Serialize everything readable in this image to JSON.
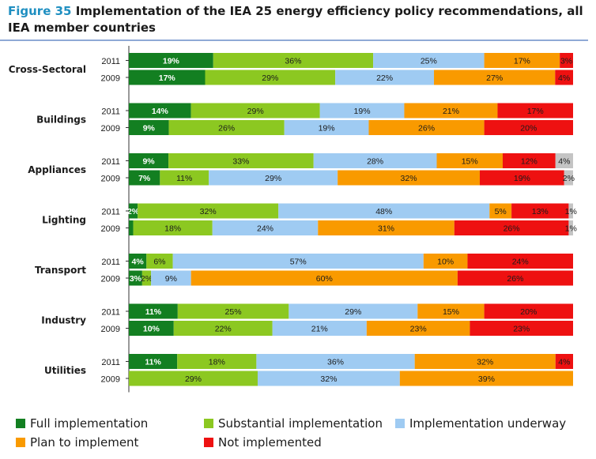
{
  "title": {
    "figure_label": "Figure 35",
    "text": "Implementation of the IEA 25 energy efficiency policy recommendations, all IEA member countries"
  },
  "colors": {
    "full": "#137f21",
    "substantial": "#8cc821",
    "underway": "#9fcbf2",
    "plan": "#f99a00",
    "not": "#ee1111",
    "extra": "#c4c4c4",
    "title_accent": "#1f8fc1",
    "rule": "#8fa9d6"
  },
  "legend": [
    {
      "key": "full",
      "label": "Full implementation"
    },
    {
      "key": "substantial",
      "label": "Substantial implementation"
    },
    {
      "key": "underway",
      "label": "Implementation underway"
    },
    {
      "key": "plan",
      "label": "Plan to implement"
    },
    {
      "key": "not",
      "label": "Not implemented"
    }
  ],
  "chart_data": {
    "type": "bar",
    "orientation": "horizontal",
    "stacked": true,
    "xlim": [
      0,
      100
    ],
    "groups": [
      {
        "name": "Cross-Sectoral",
        "bars": [
          {
            "year": "2011",
            "values": [
              19,
              36,
              25,
              17,
              3
            ],
            "labels": [
              "19%",
              "36%",
              "25%",
              "17%",
              "3%"
            ]
          },
          {
            "year": "2009",
            "values": [
              17,
              29,
              22,
              27,
              4
            ],
            "labels": [
              "17%",
              "29%",
              "22%",
              "27%",
              "4%"
            ]
          }
        ]
      },
      {
        "name": "Buildings",
        "bars": [
          {
            "year": "2011",
            "values": [
              14,
              29,
              19,
              21,
              17
            ],
            "labels": [
              "14%",
              "29%",
              "19%",
              "21%",
              "17%"
            ]
          },
          {
            "year": "2009",
            "values": [
              9,
              26,
              19,
              26,
              20
            ],
            "labels": [
              "9%",
              "26%",
              "19%",
              "26%",
              "20%"
            ]
          }
        ]
      },
      {
        "name": "Appliances",
        "bars": [
          {
            "year": "2011",
            "values": [
              9,
              33,
              28,
              15,
              12,
              4
            ],
            "labels": [
              "9%",
              "33%",
              "28%",
              "15%",
              "12%",
              "4%"
            ]
          },
          {
            "year": "2009",
            "values": [
              7,
              11,
              29,
              32,
              19,
              2
            ],
            "labels": [
              "7%",
              "11%",
              "29%",
              "32%",
              "19%",
              "2%"
            ]
          }
        ]
      },
      {
        "name": "Lighting",
        "bars": [
          {
            "year": "2011",
            "values": [
              2,
              32,
              48,
              5,
              13,
              1
            ],
            "labels": [
              "2%",
              "32%",
              "48%",
              "5%",
              "13%",
              "1%"
            ]
          },
          {
            "year": "2009",
            "values": [
              1,
              18,
              24,
              31,
              26,
              1
            ],
            "labels": [
              "",
              "18%",
              "24%",
              "31%",
              "26%",
              "1%"
            ]
          }
        ]
      },
      {
        "name": "Transport",
        "bars": [
          {
            "year": "2011",
            "values": [
              4,
              6,
              57,
              10,
              24
            ],
            "labels": [
              "4%",
              "6%",
              "57%",
              "10%",
              "24%"
            ]
          },
          {
            "year": "2009",
            "values": [
              3,
              2,
              9,
              60,
              26
            ],
            "labels": [
              "3%",
              "2%",
              "9%",
              "60%",
              "26%"
            ]
          }
        ]
      },
      {
        "name": "Industry",
        "bars": [
          {
            "year": "2011",
            "values": [
              11,
              25,
              29,
              15,
              20
            ],
            "labels": [
              "11%",
              "25%",
              "29%",
              "15%",
              "20%"
            ]
          },
          {
            "year": "2009",
            "values": [
              10,
              22,
              21,
              23,
              23
            ],
            "labels": [
              "10%",
              "22%",
              "21%",
              "23%",
              "23%"
            ]
          }
        ]
      },
      {
        "name": "Utilities",
        "bars": [
          {
            "year": "2011",
            "values": [
              11,
              18,
              36,
              32,
              4
            ],
            "labels": [
              "11%",
              "18%",
              "36%",
              "32%",
              "4%"
            ]
          },
          {
            "year": "2009",
            "values": [
              0,
              29,
              32,
              39,
              0
            ],
            "labels": [
              "",
              "29%",
              "32%",
              "39%",
              ""
            ]
          }
        ]
      }
    ]
  }
}
